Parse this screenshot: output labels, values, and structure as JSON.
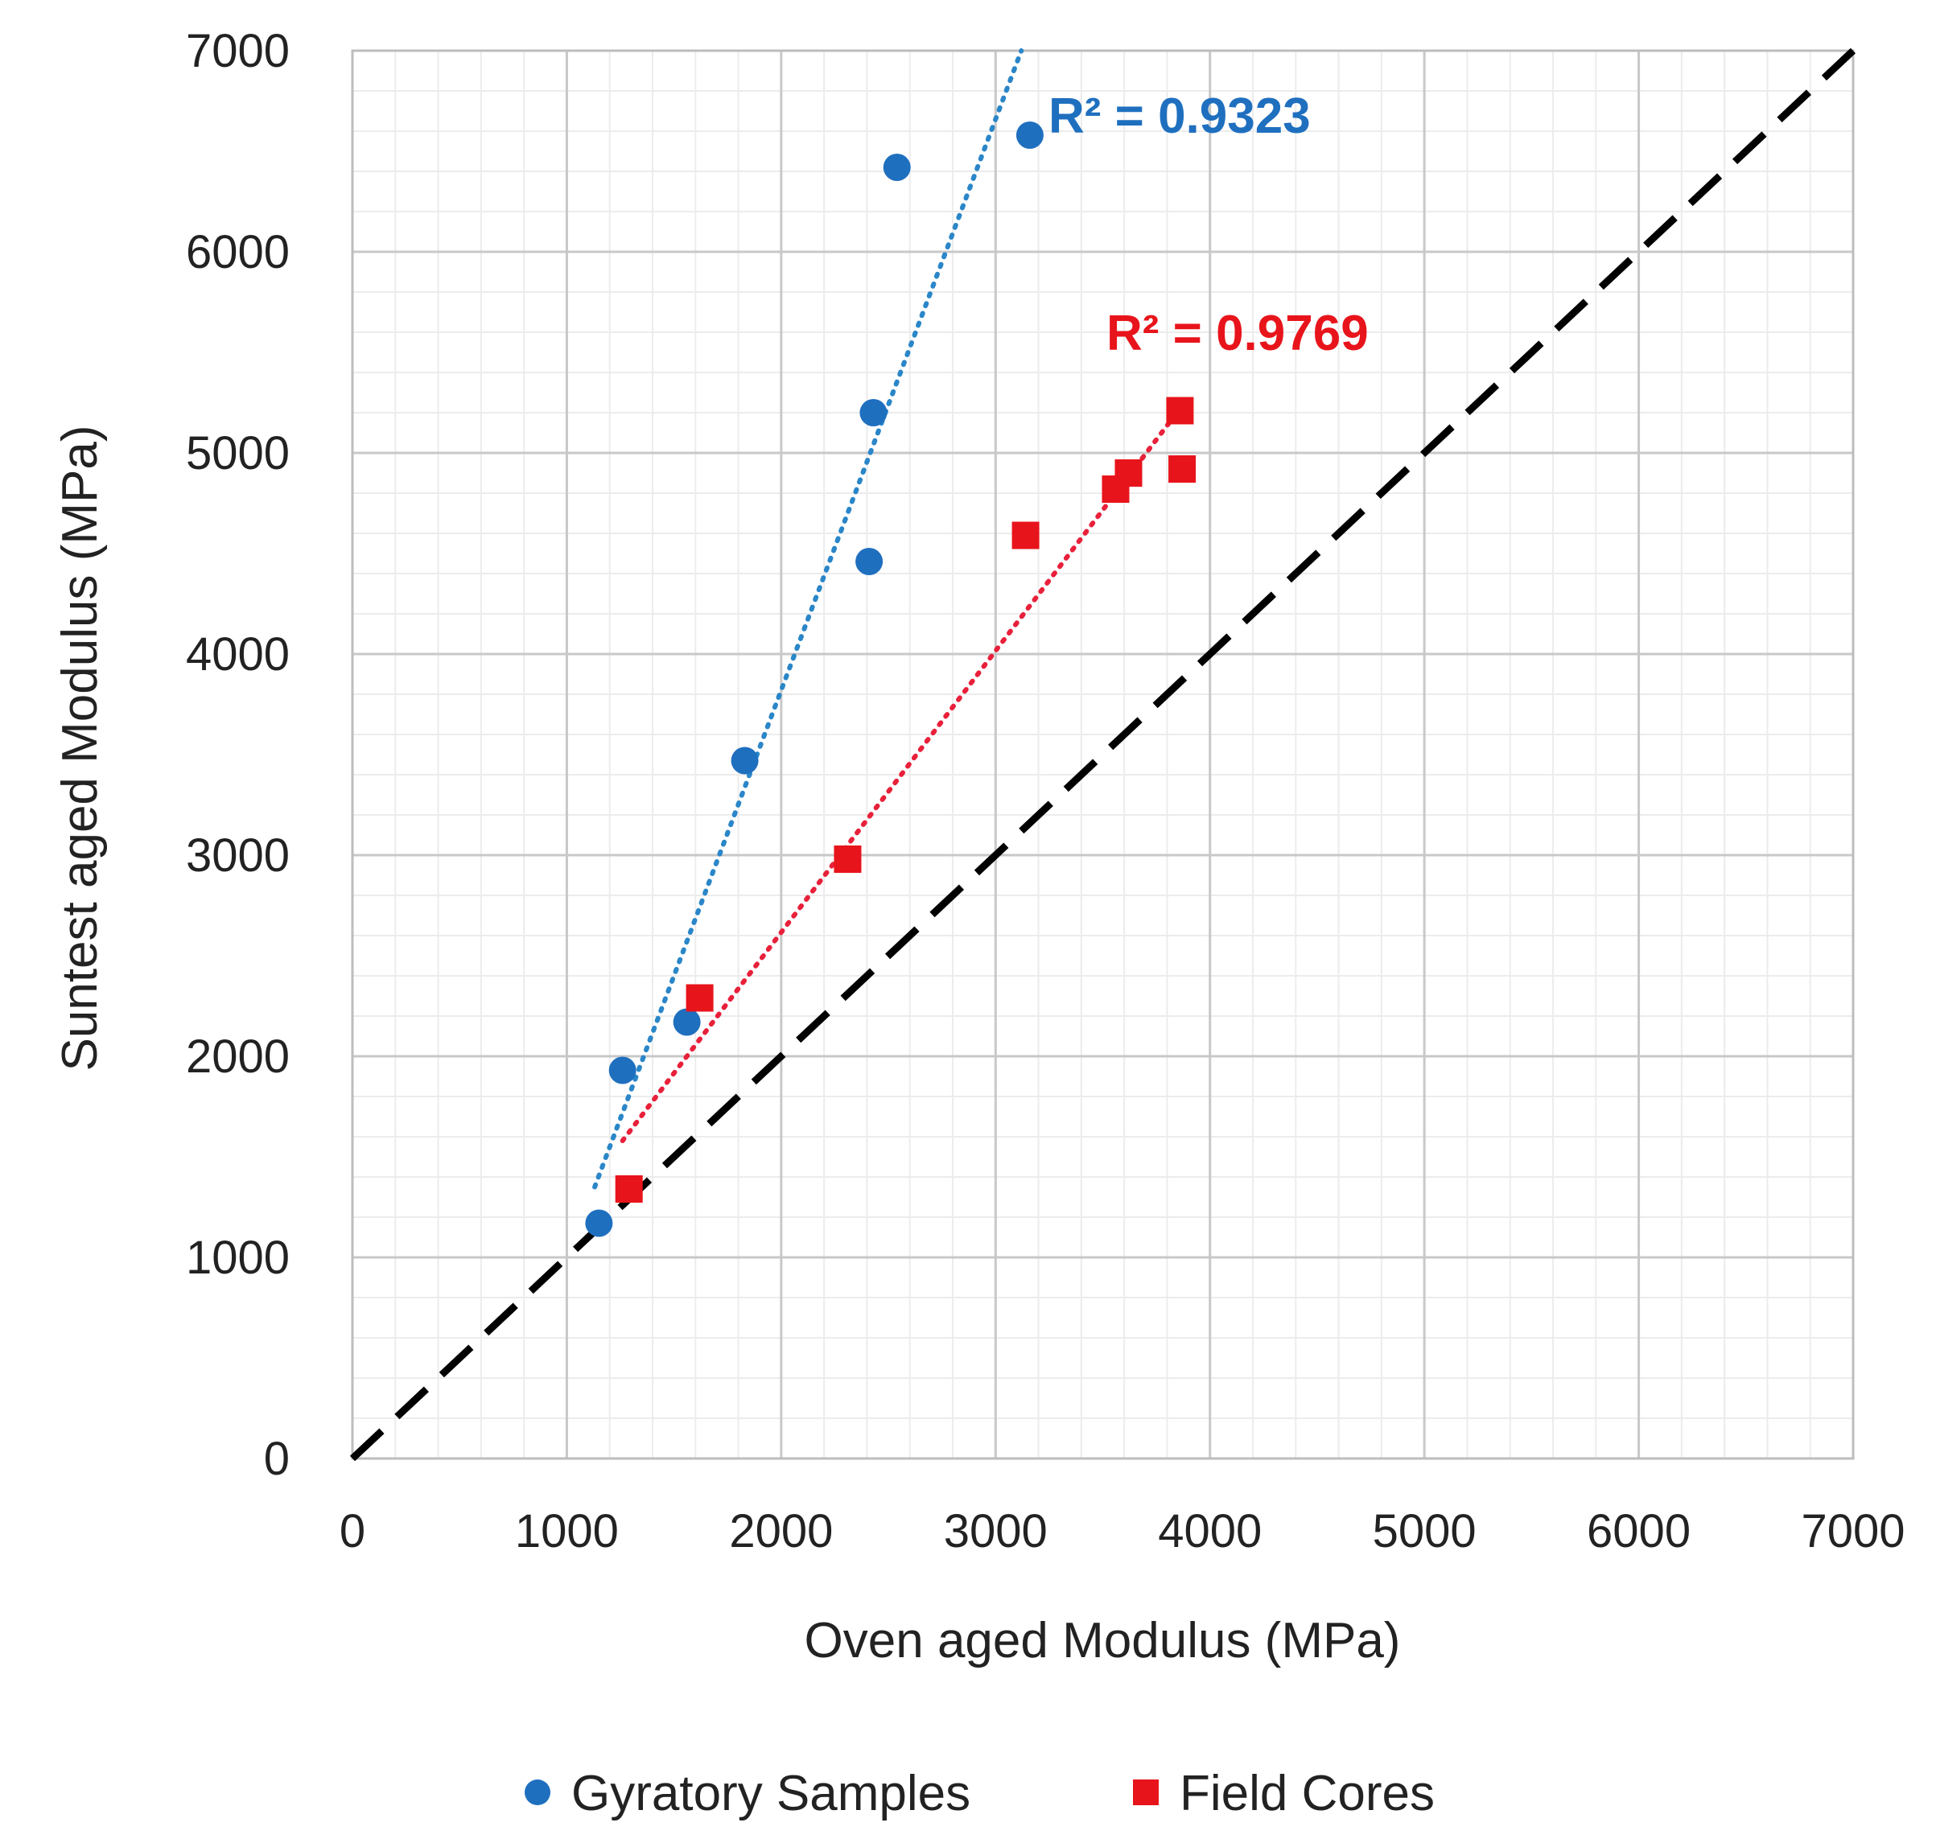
{
  "chart_data": {
    "type": "scatter",
    "title": "",
    "xlabel": "Oven aged Modulus  (MPa)",
    "ylabel": "Suntest aged Modulus  (MPa)",
    "xlim": [
      0,
      7000
    ],
    "ylim": [
      0,
      7000
    ],
    "xticks": [
      "0",
      "1000",
      "2000",
      "3000",
      "4000",
      "5000",
      "6000",
      "7000"
    ],
    "yticks": [
      "0",
      "1000",
      "2000",
      "3000",
      "4000",
      "5000",
      "6000",
      "7000"
    ],
    "grid": true,
    "legend_position": "bottom",
    "series": [
      {
        "name": "Gyratory Samples",
        "marker": "circle",
        "color": "#1f6fbf",
        "points": [
          {
            "x": 1150,
            "y": 1170
          },
          {
            "x": 1260,
            "y": 1930
          },
          {
            "x": 1560,
            "y": 2170
          },
          {
            "x": 1830,
            "y": 3470
          },
          {
            "x": 2410,
            "y": 4460
          },
          {
            "x": 2430,
            "y": 5200
          },
          {
            "x": 2540,
            "y": 6420
          },
          {
            "x": 3160,
            "y": 6580
          }
        ],
        "trendline": {
          "x": [
            1130,
            3120
          ],
          "y": [
            1350,
            7000
          ],
          "style": "dotted"
        },
        "r2_label": "R² = 0.9323"
      },
      {
        "name": "Field Cores",
        "marker": "square",
        "color": "#e8141b",
        "points": [
          {
            "x": 1290,
            "y": 1340
          },
          {
            "x": 1620,
            "y": 2290
          },
          {
            "x": 2310,
            "y": 2980
          },
          {
            "x": 3140,
            "y": 4590
          },
          {
            "x": 3560,
            "y": 4820
          },
          {
            "x": 3620,
            "y": 4900
          },
          {
            "x": 3860,
            "y": 5210
          },
          {
            "x": 3870,
            "y": 4920
          }
        ],
        "trendline": {
          "x": [
            1260,
            3860
          ],
          "y": [
            1580,
            5220
          ],
          "style": "dotted"
        },
        "r2_label": "R² = 0.9769"
      }
    ],
    "reference_line": {
      "x": [
        0,
        7000
      ],
      "y": [
        0,
        7000
      ],
      "style": "dashed",
      "color": "#000000"
    }
  }
}
